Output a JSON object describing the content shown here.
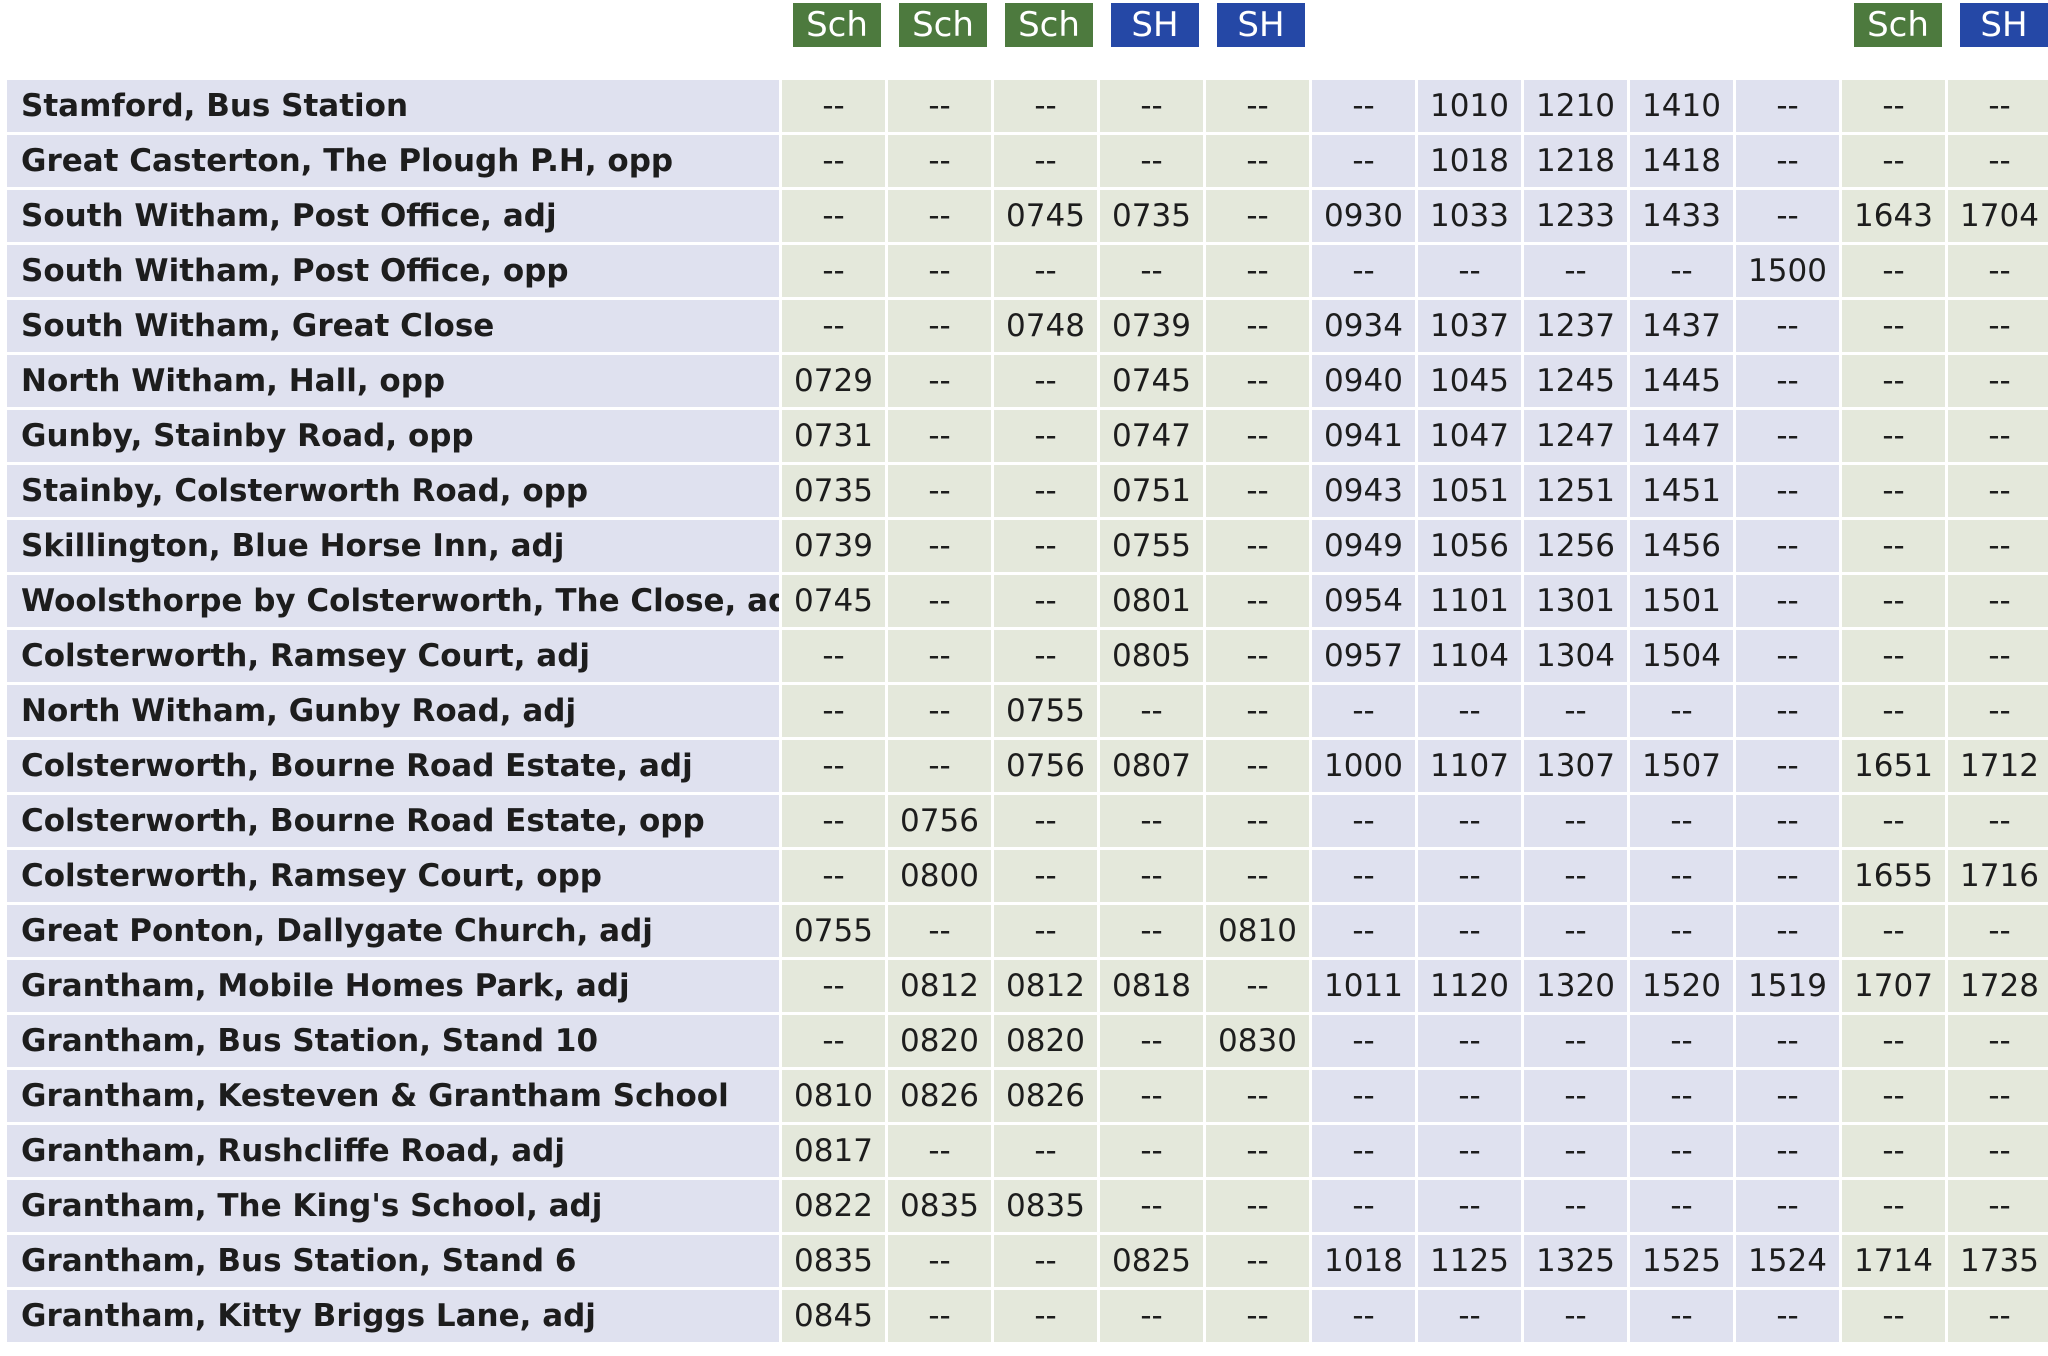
{
  "columns": [
    {
      "badge": "Sch",
      "kind": "sch"
    },
    {
      "badge": "Sch",
      "kind": "sch"
    },
    {
      "badge": "Sch",
      "kind": "sch"
    },
    {
      "badge": "SH",
      "kind": "sh"
    },
    {
      "badge": "SH",
      "kind": "sh"
    },
    {
      "badge": "",
      "kind": "none"
    },
    {
      "badge": "",
      "kind": "none"
    },
    {
      "badge": "",
      "kind": "none"
    },
    {
      "badge": "",
      "kind": "none"
    },
    {
      "badge": "",
      "kind": "none"
    },
    {
      "badge": "Sch",
      "kind": "sch"
    },
    {
      "badge": "SH",
      "kind": "sh"
    }
  ],
  "rows": [
    {
      "stop": "Stamford, Bus Station",
      "times": [
        "--",
        "--",
        "--",
        "--",
        "--",
        "--",
        "1010",
        "1210",
        "1410",
        "--",
        "--",
        "--"
      ]
    },
    {
      "stop": "Great Casterton, The Plough P.H, opp",
      "times": [
        "--",
        "--",
        "--",
        "--",
        "--",
        "--",
        "1018",
        "1218",
        "1418",
        "--",
        "--",
        "--"
      ]
    },
    {
      "stop": "South Witham, Post Office, adj",
      "times": [
        "--",
        "--",
        "0745",
        "0735",
        "--",
        "0930",
        "1033",
        "1233",
        "1433",
        "--",
        "1643",
        "1704"
      ]
    },
    {
      "stop": "South Witham, Post Office, opp",
      "times": [
        "--",
        "--",
        "--",
        "--",
        "--",
        "--",
        "--",
        "--",
        "--",
        "1500",
        "--",
        "--"
      ]
    },
    {
      "stop": "South Witham, Great Close",
      "times": [
        "--",
        "--",
        "0748",
        "0739",
        "--",
        "0934",
        "1037",
        "1237",
        "1437",
        "--",
        "--",
        "--"
      ]
    },
    {
      "stop": "North Witham, Hall, opp",
      "times": [
        "0729",
        "--",
        "--",
        "0745",
        "--",
        "0940",
        "1045",
        "1245",
        "1445",
        "--",
        "--",
        "--"
      ]
    },
    {
      "stop": "Gunby, Stainby Road, opp",
      "times": [
        "0731",
        "--",
        "--",
        "0747",
        "--",
        "0941",
        "1047",
        "1247",
        "1447",
        "--",
        "--",
        "--"
      ]
    },
    {
      "stop": "Stainby, Colsterworth Road, opp",
      "times": [
        "0735",
        "--",
        "--",
        "0751",
        "--",
        "0943",
        "1051",
        "1251",
        "1451",
        "--",
        "--",
        "--"
      ]
    },
    {
      "stop": "Skillington, Blue Horse Inn, adj",
      "times": [
        "0739",
        "--",
        "--",
        "0755",
        "--",
        "0949",
        "1056",
        "1256",
        "1456",
        "--",
        "--",
        "--"
      ]
    },
    {
      "stop": "Woolsthorpe by Colsterworth, The Close, adj",
      "times": [
        "0745",
        "--",
        "--",
        "0801",
        "--",
        "0954",
        "1101",
        "1301",
        "1501",
        "--",
        "--",
        "--"
      ]
    },
    {
      "stop": "Colsterworth, Ramsey Court, adj",
      "times": [
        "--",
        "--",
        "--",
        "0805",
        "--",
        "0957",
        "1104",
        "1304",
        "1504",
        "--",
        "--",
        "--"
      ]
    },
    {
      "stop": "North Witham, Gunby Road, adj",
      "times": [
        "--",
        "--",
        "0755",
        "--",
        "--",
        "--",
        "--",
        "--",
        "--",
        "--",
        "--",
        "--"
      ]
    },
    {
      "stop": "Colsterworth, Bourne Road Estate, adj",
      "times": [
        "--",
        "--",
        "0756",
        "0807",
        "--",
        "1000",
        "1107",
        "1307",
        "1507",
        "--",
        "1651",
        "1712"
      ]
    },
    {
      "stop": "Colsterworth, Bourne Road Estate, opp",
      "times": [
        "--",
        "0756",
        "--",
        "--",
        "--",
        "--",
        "--",
        "--",
        "--",
        "--",
        "--",
        "--"
      ]
    },
    {
      "stop": "Colsterworth, Ramsey Court, opp",
      "times": [
        "--",
        "0800",
        "--",
        "--",
        "--",
        "--",
        "--",
        "--",
        "--",
        "--",
        "1655",
        "1716"
      ]
    },
    {
      "stop": "Great Ponton, Dallygate Church, adj",
      "times": [
        "0755",
        "--",
        "--",
        "--",
        "0810",
        "--",
        "--",
        "--",
        "--",
        "--",
        "--",
        "--"
      ]
    },
    {
      "stop": "Grantham, Mobile Homes Park, adj",
      "times": [
        "--",
        "0812",
        "0812",
        "0818",
        "--",
        "1011",
        "1120",
        "1320",
        "1520",
        "1519",
        "1707",
        "1728"
      ]
    },
    {
      "stop": "Grantham, Bus Station, Stand 10",
      "times": [
        "--",
        "0820",
        "0820",
        "--",
        "0830",
        "--",
        "--",
        "--",
        "--",
        "--",
        "--",
        "--"
      ]
    },
    {
      "stop": "Grantham, Kesteven & Grantham School",
      "times": [
        "0810",
        "0826",
        "0826",
        "--",
        "--",
        "--",
        "--",
        "--",
        "--",
        "--",
        "--",
        "--"
      ]
    },
    {
      "stop": "Grantham, Rushcliffe Road, adj",
      "times": [
        "0817",
        "--",
        "--",
        "--",
        "--",
        "--",
        "--",
        "--",
        "--",
        "--",
        "--",
        "--"
      ]
    },
    {
      "stop": "Grantham, The King's School, adj",
      "times": [
        "0822",
        "0835",
        "0835",
        "--",
        "--",
        "--",
        "--",
        "--",
        "--",
        "--",
        "--",
        "--"
      ]
    },
    {
      "stop": "Grantham, Bus Station, Stand 6",
      "times": [
        "0835",
        "--",
        "--",
        "0825",
        "--",
        "1018",
        "1125",
        "1325",
        "1525",
        "1524",
        "1714",
        "1735"
      ]
    },
    {
      "stop": "Grantham, Kitty Briggs Lane, adj",
      "times": [
        "0845",
        "--",
        "--",
        "--",
        "--",
        "--",
        "--",
        "--",
        "--",
        "--",
        "--",
        "--"
      ]
    }
  ],
  "colors": {
    "sch_badge": "#4d7a3e",
    "sh_badge": "#2548a6",
    "cell_green": "#e4e8db",
    "cell_purple": "#dfe1ef"
  }
}
